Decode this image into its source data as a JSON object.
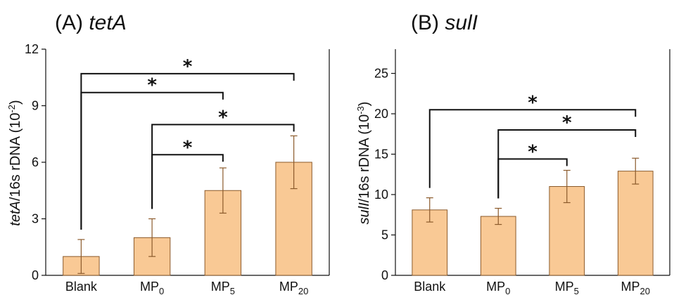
{
  "colors": {
    "bar_fill": "#f9c995",
    "bar_stroke": "#8b5a2b",
    "axis": "#111111"
  },
  "chart_data": [
    {
      "type": "bar",
      "panel_letter": "(A)",
      "panel_gene": "tetA",
      "categories": [
        {
          "base": "Blank",
          "sub": ""
        },
        {
          "base": "MP",
          "sub": "0"
        },
        {
          "base": "MP",
          "sub": "5"
        },
        {
          "base": "MP",
          "sub": "20"
        }
      ],
      "values": [
        1.0,
        2.0,
        4.5,
        6.0
      ],
      "errors": [
        0.9,
        1.0,
        1.2,
        1.4
      ],
      "ylim": [
        0,
        12
      ],
      "yticks": [
        0,
        3,
        6,
        9,
        12
      ],
      "ylabel": {
        "italic": "tetA",
        "rest": "/16s rDNA (10",
        "exp": "-2",
        "close": ")"
      },
      "significance": [
        {
          "from": 0,
          "to": 3,
          "y": 10.7,
          "label": "*"
        },
        {
          "from": 0,
          "to": 2,
          "y": 9.7,
          "label": "*"
        },
        {
          "from": 1,
          "to": 3,
          "y": 8.0,
          "label": "*"
        },
        {
          "from": 1,
          "to": 2,
          "y": 6.4,
          "label": "*"
        }
      ]
    },
    {
      "type": "bar",
      "panel_letter": "(B)",
      "panel_gene": "sulI",
      "categories": [
        {
          "base": "Blank",
          "sub": ""
        },
        {
          "base": "MP",
          "sub": "0"
        },
        {
          "base": "MP",
          "sub": "5"
        },
        {
          "base": "MP",
          "sub": "20"
        }
      ],
      "values": [
        8.1,
        7.3,
        11.0,
        12.9
      ],
      "errors": [
        1.5,
        1.0,
        2.0,
        1.6
      ],
      "ylim": [
        0,
        28
      ],
      "yticks": [
        0,
        5,
        10,
        15,
        20,
        25
      ],
      "ylabel": {
        "italic": "sulI",
        "rest": "/16s rDNA (10",
        "exp": "-3",
        "close": ")"
      },
      "significance": [
        {
          "from": 0,
          "to": 3,
          "y": 20.5,
          "label": "*"
        },
        {
          "from": 1,
          "to": 3,
          "y": 18.0,
          "label": "*"
        },
        {
          "from": 1,
          "to": 2,
          "y": 14.4,
          "label": "*"
        }
      ]
    }
  ]
}
